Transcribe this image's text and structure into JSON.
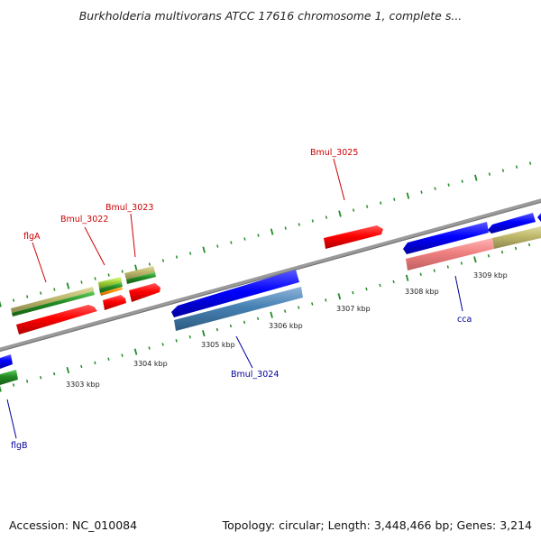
{
  "header": {
    "title": "Burkholderia multivorans ATCC 17616 chromosome 1, complete s..."
  },
  "footer": {
    "accession": "Accession: NC_010084",
    "topology": "Topology: circular; Length: 3,448,466 bp; Genes: 3,214"
  },
  "ruler_labels": [
    "3303 kbp",
    "3304 kbp",
    "3305 kbp",
    "3306 kbp",
    "3307 kbp",
    "3308 kbp",
    "3309 kbp"
  ],
  "gene_labels": {
    "top_strand": [
      "flgA",
      "Bmul_3022",
      "Bmul_3023",
      "Bmul_3025"
    ],
    "bottom_strand": [
      "flgB",
      "Bmul_3024",
      "cca"
    ]
  },
  "colors": {
    "forward_cds": "#ff0000",
    "reverse_cds": "#0000ff",
    "gene_green": "#228b22",
    "gene_tan": "#bdb76b",
    "backbone": "#808080",
    "tick": "#228b22",
    "label_red": "#cc0000",
    "label_blue": "#000099"
  }
}
